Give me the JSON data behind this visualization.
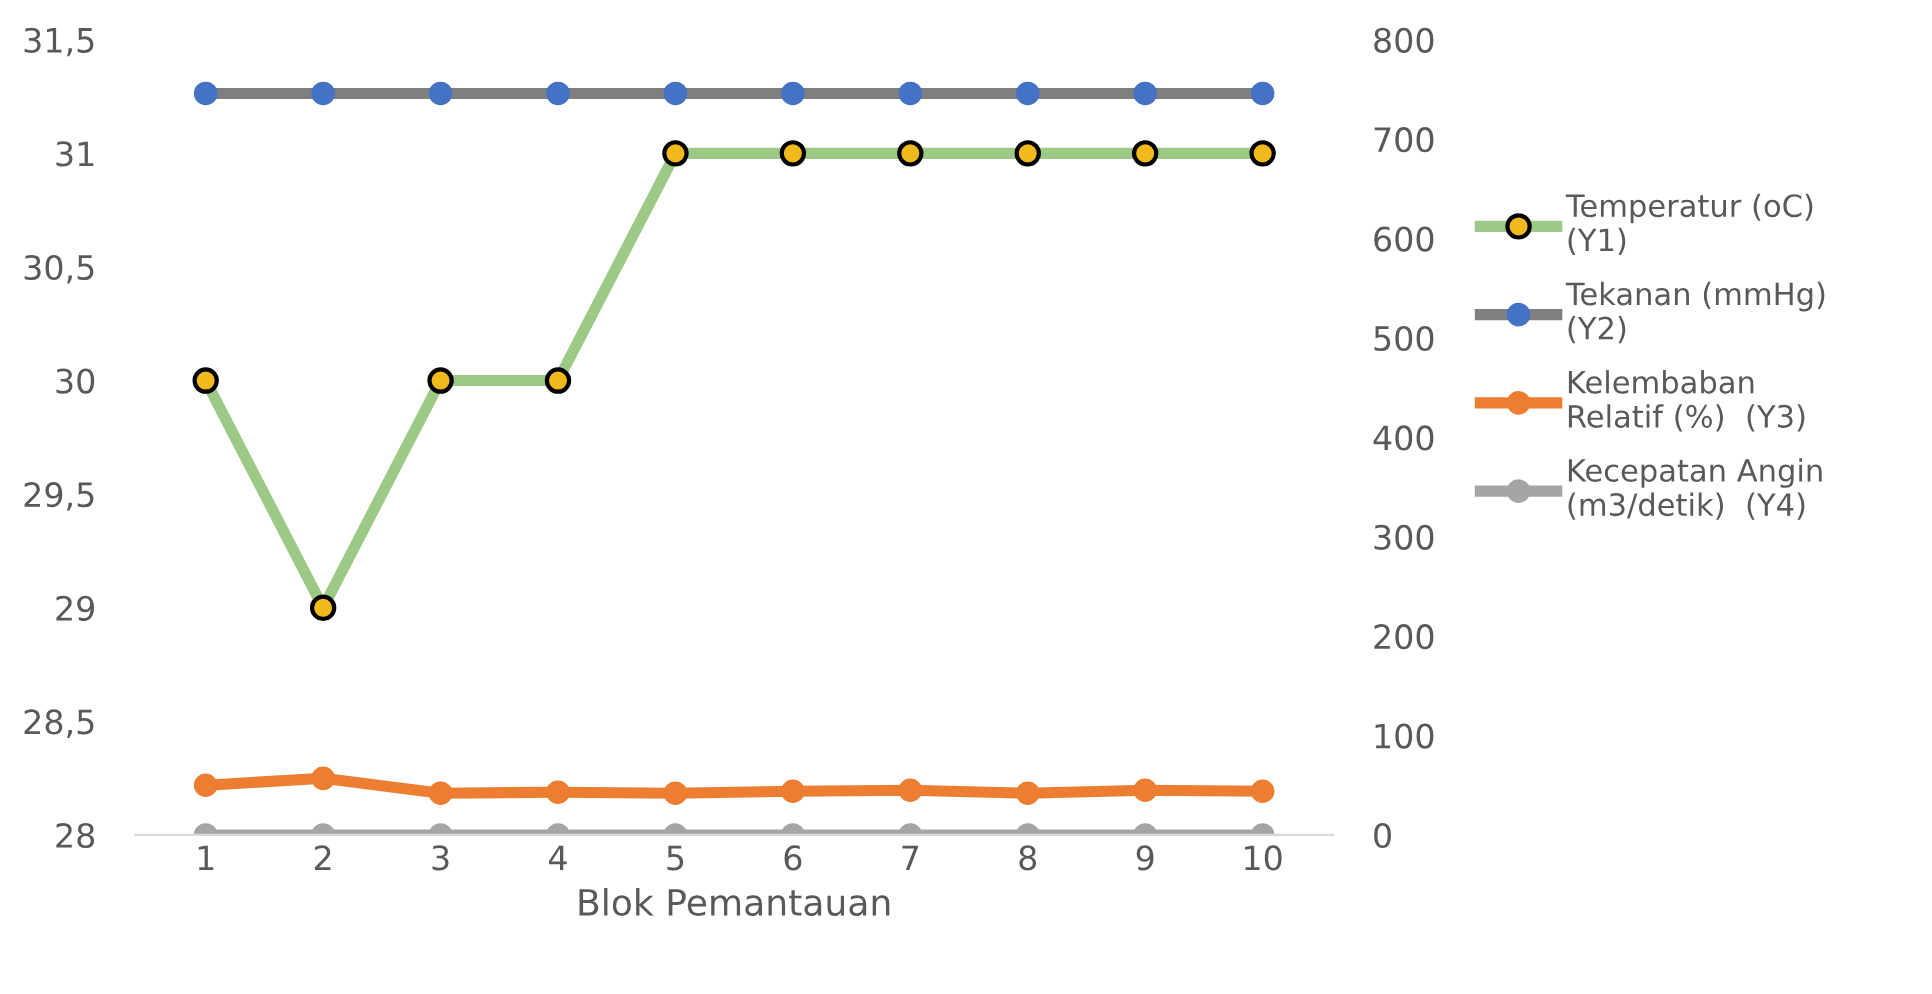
{
  "chart_data": {
    "type": "line",
    "xlabel": "Blok Pemantauan",
    "categories": [
      "1",
      "2",
      "3",
      "4",
      "5",
      "6",
      "7",
      "8",
      "9",
      "10"
    ],
    "series": [
      {
        "name": "Temperatur (oC)\n(Y1)",
        "color": "#9dc987",
        "colors": [
          "#f2b91c",
          "#f2b91c",
          "#f2b91c",
          "#f2b91c",
          "#f2b91c",
          "#f2b91c",
          "#f2b91c",
          "#f2b91c",
          "#f2b91c",
          "#f2b91c"
        ],
        "values": [
          30,
          29,
          30,
          30,
          31,
          31,
          31,
          31,
          31,
          31
        ]
      },
      {
        "name": "Tekanan (mmHg)\n(Y2)",
        "color": "#7f7f7f",
        "colors": [
          "#4472c4",
          "#4472c4",
          "#4472c4",
          "#4472c4",
          "#4472c4",
          "#4472c4",
          "#4472c4",
          "#4472c4",
          "#4472c4",
          "#4472c4"
        ],
        "axis": "y2",
        "values": [
          746,
          746,
          746,
          746,
          746,
          746,
          746,
          746,
          746,
          746
        ]
      },
      {
        "name": "Kelembaban\nRelatif (%)  (Y3)",
        "color": "#ed7d31",
        "axis": "y2",
        "values": [
          50,
          57,
          42,
          43,
          42,
          44,
          45,
          42,
          45,
          44
        ]
      },
      {
        "name": "Kecepatan Angin\n(m3/detik)  (Y4)",
        "color": "#a5a5a5",
        "axis": "y2",
        "values": [
          0,
          0,
          0,
          0,
          0,
          0,
          0,
          0,
          0,
          0
        ]
      }
    ],
    "ylim": [
      28,
      31.5
    ],
    "yticks": [
      28,
      {
        "value": 28.5,
        "label": "28,5"
      },
      29,
      {
        "value": 29.5,
        "label": "29,5"
      },
      30,
      {
        "value": 30.5,
        "label": "30,5"
      },
      31,
      {
        "value": 31.5,
        "label": "31,5"
      }
    ],
    "y2lim": [
      0,
      800
    ],
    "y2ticks": [
      0,
      100,
      200,
      300,
      400,
      500,
      600,
      700,
      800
    ],
    "marker": "circle",
    "legend": "right",
    "grid": false
  }
}
